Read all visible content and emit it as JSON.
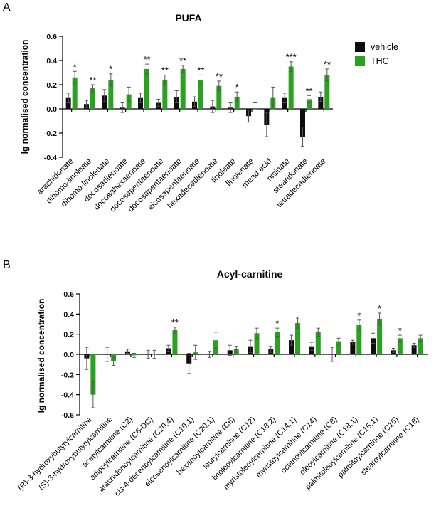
{
  "colors": {
    "vehicle": "#0d0d0d",
    "THC": "#2aa11f"
  },
  "panels": {
    "a": {
      "letter": "A"
    },
    "b": {
      "letter": "B"
    }
  },
  "chart_data": [
    {
      "type": "bar",
      "title": "PUFA",
      "ylabel": "lg normalised concentration",
      "xlabel": "",
      "ylim": [
        -0.4,
        0.6
      ],
      "yticks": [
        -0.4,
        -0.2,
        0.0,
        0.2,
        0.4,
        0.6
      ],
      "ytick_labels": [
        "-0.4",
        "-0.2",
        "0.0",
        "0.2",
        "0.4",
        "0.6"
      ],
      "legend": {
        "position": "top-right",
        "entries": [
          "vehicle",
          "THC"
        ]
      },
      "categories": [
        "arachidonate",
        "dihomo-linoleate",
        "dihomo-linolenate",
        "docosadienoate",
        "docosahexaenoate",
        "docosapentaenoate",
        "docosapentaenoate",
        "eicosapentaenoate",
        "hexadecadienoate",
        "linoleate",
        "linolenate",
        "mead acid",
        "nisinate",
        "stearidonate",
        "tetradecadienoate"
      ],
      "series": [
        {
          "name": "vehicle",
          "values": [
            0.09,
            0.04,
            0.11,
            0.01,
            0.09,
            0.05,
            0.1,
            0.06,
            0.02,
            0.01,
            -0.06,
            -0.13,
            0.09,
            -0.23,
            0.1
          ],
          "errors": [
            0.04,
            0.03,
            0.05,
            0.04,
            0.04,
            0.03,
            0.05,
            0.04,
            0.05,
            0.04,
            0.05,
            0.1,
            0.04,
            0.08,
            0.04
          ]
        },
        {
          "name": "THC",
          "values": [
            0.26,
            0.17,
            0.24,
            0.12,
            0.33,
            0.24,
            0.33,
            0.24,
            0.19,
            0.1,
            0.0,
            0.09,
            0.35,
            0.08,
            0.28
          ],
          "errors": [
            0.05,
            0.03,
            0.05,
            0.06,
            0.04,
            0.04,
            0.03,
            0.04,
            0.04,
            0.04,
            0.05,
            0.09,
            0.04,
            0.03,
            0.05
          ]
        }
      ],
      "significance": [
        "*",
        "**",
        "*",
        "",
        "**",
        "**",
        "**",
        "**",
        "**",
        "*",
        "",
        "",
        "***",
        "**",
        "**"
      ]
    },
    {
      "type": "bar",
      "title": "Acyl-carnitine",
      "ylabel": "lg normalised concentration",
      "xlabel": "",
      "ylim": [
        -0.6,
        0.6
      ],
      "yticks": [
        -0.6,
        -0.4,
        -0.2,
        0.0,
        0.2,
        0.4,
        0.6
      ],
      "ytick_labels": [
        "-0.6",
        "-0.4",
        "-0.2",
        "0.0",
        "0.2",
        "0.4",
        "0.6"
      ],
      "categories": [
        "(R)-3-hydroxybutyrylcarnitine",
        "(S)-3-hydroxybutyrylcarnitine",
        "acetylcarnitine (C2)",
        "adipoylcarnitine (C6-DC)",
        "arachidonoylcarnitine (C20:4)",
        "cis-4-decenoylcarnitine (C10:1)",
        "eicosenoylcarnitine (C20:1)",
        "hexanoylcarnitine (C6)",
        "laurylcarnitine (C12)",
        "linoleoylcarnitine (C18:2)",
        "myristoleoylcarnitine (C14:1)",
        "myristoylcarnitine (C14)",
        "octanoylcarnitine (C8)",
        "oleoylcarnitine (C18:1)",
        "palmitoleoylcarnitine (C16:1)",
        "palmitoylcarnitine (C16)",
        "stearoylcarnitine (C18)"
      ],
      "series": [
        {
          "name": "vehicle",
          "values": [
            -0.04,
            0.0,
            0.03,
            0.0,
            0.06,
            -0.09,
            0.0,
            0.04,
            0.08,
            0.05,
            0.14,
            0.08,
            0.0,
            0.12,
            0.16,
            0.04,
            0.09
          ],
          "errors": [
            0.11,
            0.07,
            0.02,
            0.04,
            0.03,
            0.1,
            0.03,
            0.05,
            0.06,
            0.03,
            0.05,
            0.04,
            0.07,
            0.02,
            0.05,
            0.02,
            0.02
          ]
        },
        {
          "name": "THC",
          "values": [
            -0.4,
            -0.07,
            -0.01,
            0.0,
            0.24,
            0.02,
            0.14,
            0.05,
            0.21,
            0.22,
            0.31,
            0.22,
            0.13,
            0.29,
            0.35,
            0.16,
            0.16
          ],
          "errors": [
            0.13,
            0.04,
            0.02,
            0.04,
            0.03,
            0.07,
            0.08,
            0.03,
            0.05,
            0.04,
            0.05,
            0.04,
            0.03,
            0.05,
            0.06,
            0.03,
            0.03
          ]
        }
      ],
      "significance": [
        "",
        "",
        "",
        "",
        "**",
        "",
        "",
        "",
        "",
        "*",
        "",
        "",
        "",
        "*",
        "*",
        "*",
        ""
      ]
    }
  ]
}
